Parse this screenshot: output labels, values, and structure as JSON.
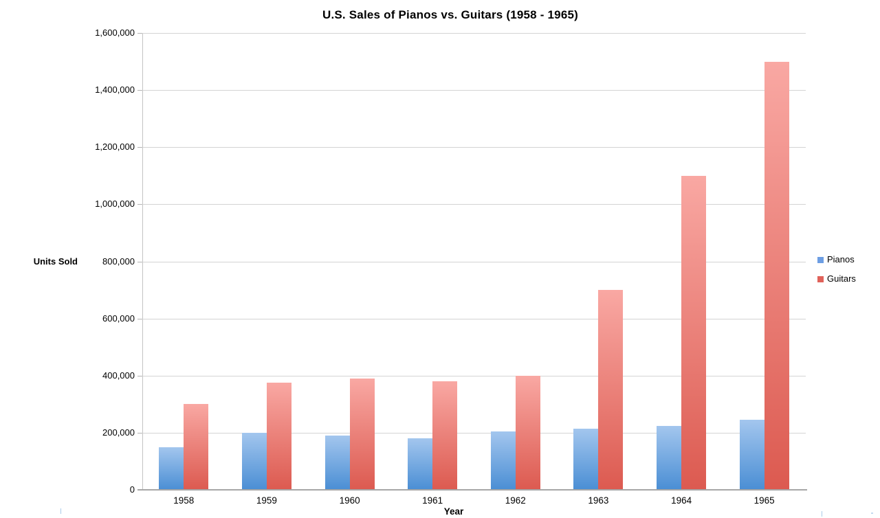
{
  "chart_data": {
    "type": "bar",
    "title": "U.S. Sales of Pianos vs. Guitars (1958 - 1965)",
    "xlabel": "Year",
    "ylabel": "Units Sold",
    "categories": [
      "1958",
      "1959",
      "1960",
      "1961",
      "1962",
      "1963",
      "1964",
      "1965"
    ],
    "series": [
      {
        "name": "Pianos",
        "values": [
          150000,
          200000,
          190000,
          180000,
          205000,
          215000,
          225000,
          245000
        ],
        "color_top": "#a3c6ee",
        "color_bottom": "#4a8ed4",
        "legend_color": "#6d9ee3"
      },
      {
        "name": "Guitars",
        "values": [
          300000,
          375000,
          390000,
          380000,
          400000,
          700000,
          1100000,
          1500000
        ],
        "color_top": "#f9a8a3",
        "color_bottom": "#dc5a50",
        "legend_color": "#e0625a"
      }
    ],
    "ylim": [
      0,
      1600000
    ],
    "ytick_step": 200000,
    "ytick_labels": [
      "0",
      "200,000",
      "400,000",
      "600,000",
      "800,000",
      "1,000,000",
      "1,200,000",
      "1,400,000",
      "1,600,000"
    ],
    "grid": true,
    "legend_position": "right-middle"
  },
  "colors": {
    "gridline": "#d3d3d3",
    "axis_line": "#c3c3c3",
    "baseline": "#a6a6a6",
    "text": "#000000"
  }
}
